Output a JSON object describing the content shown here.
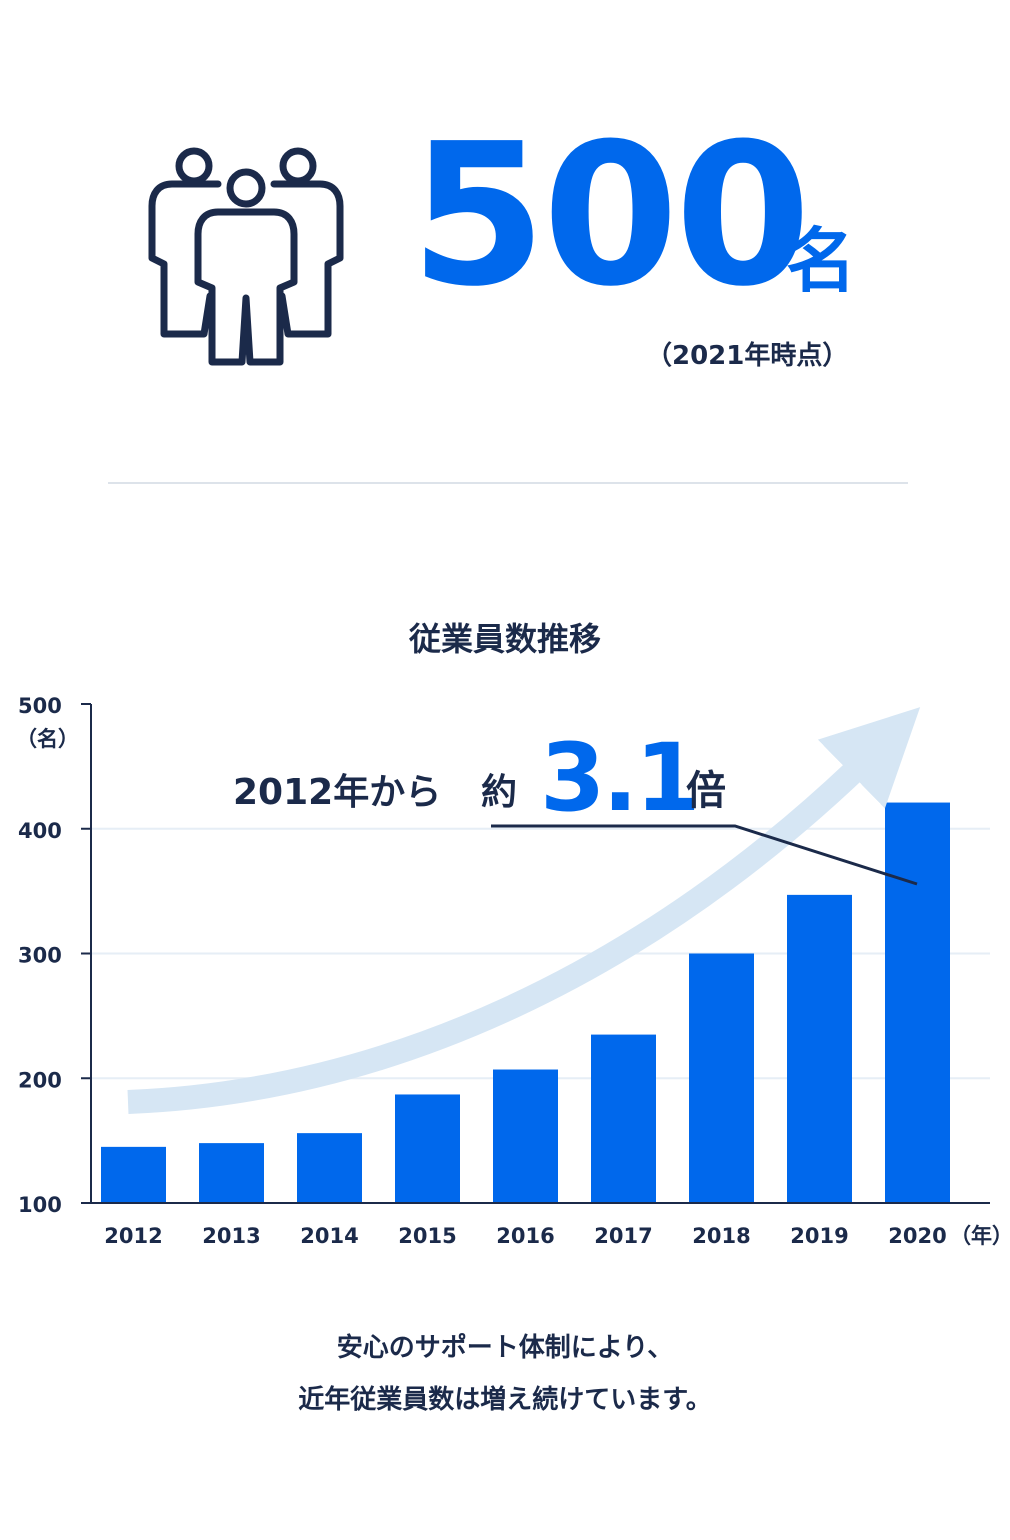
{
  "stat": {
    "icon": "people-group-icon",
    "value": "500",
    "unit": "名",
    "note": "（2021年時点）"
  },
  "chart_data": {
    "type": "bar",
    "title": "従業員数推移",
    "categories": [
      "2012",
      "2013",
      "2014",
      "2015",
      "2016",
      "2017",
      "2018",
      "2019",
      "2020"
    ],
    "values": [
      145,
      148,
      156,
      187,
      207,
      235,
      300,
      347,
      421
    ],
    "ylim": [
      100,
      500
    ],
    "yticks": [
      "100",
      "200",
      "300",
      "400",
      "500"
    ],
    "ylabel": "（名）",
    "xlabel": "（年）",
    "grid": true,
    "bar_color": "#0068ec",
    "arrow_color": "#d6e6f4",
    "annotation": {
      "prefix": "2012年から",
      "approx": "約",
      "value": "3.1",
      "suffix": "倍"
    }
  },
  "footer": {
    "line1": "安心のサポート体制により、",
    "line2": "近年従業員数は増え続けています。"
  }
}
